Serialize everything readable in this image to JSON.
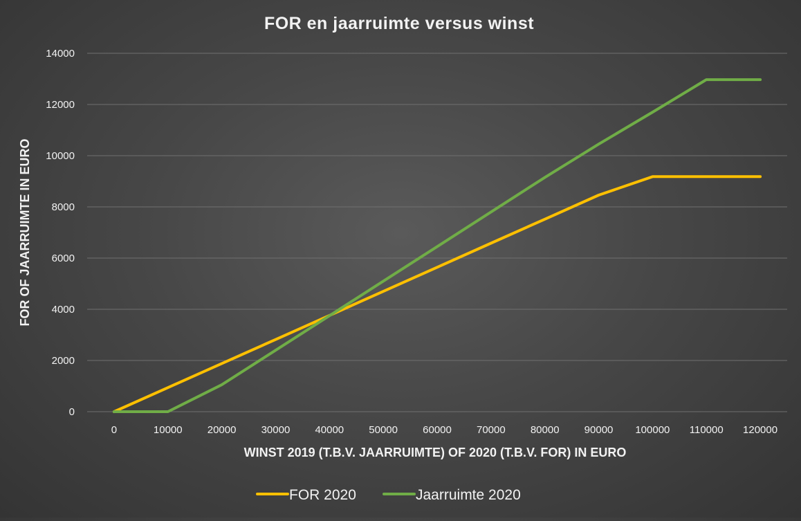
{
  "chart_data": {
    "type": "line",
    "title": "FOR en jaarruimte versus winst",
    "xlabel": "WINST 2019 (T.B.V. JAARRUIMTE) OF 2020 (T.B.V. FOR) IN EURO",
    "ylabel": "FOR OF JAARRUIMTE IN EURO",
    "categories": [
      "0",
      "10000",
      "20000",
      "30000",
      "40000",
      "50000",
      "60000",
      "70000",
      "80000",
      "90000",
      "100000",
      "110000",
      "120000"
    ],
    "y_ticks": [
      "0",
      "2000",
      "4000",
      "6000",
      "8000",
      "10000",
      "12000",
      "14000"
    ],
    "ylim": [
      0,
      14000
    ],
    "grid": true,
    "legend_position": "bottom",
    "series": [
      {
        "name": "FOR 2020",
        "color": "#ffc000",
        "values": [
          0,
          940,
          1880,
          2820,
          3760,
          4700,
          5640,
          6580,
          7520,
          8460,
          9180,
          9180,
          9180
        ]
      },
      {
        "name": "Jaarruimte 2020",
        "color": "#70ad47",
        "values": [
          0,
          0,
          1050,
          2400,
          3750,
          5100,
          6450,
          7800,
          9150,
          10450,
          11700,
          12970,
          12970
        ]
      }
    ]
  }
}
